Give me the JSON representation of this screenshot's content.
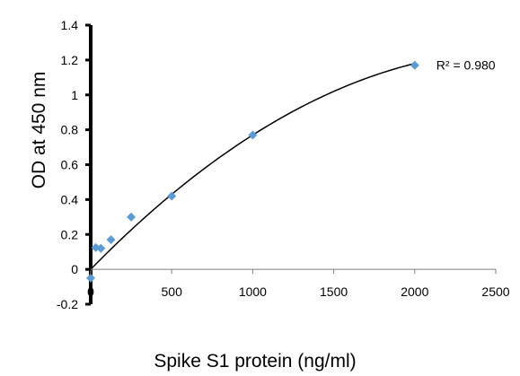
{
  "chart_data": {
    "type": "scatter",
    "xlabel": "Spike S1 protein (ng/ml)",
    "ylabel": "OD at 450 nm",
    "xlim": [
      0,
      2500
    ],
    "ylim": [
      -0.2,
      1.4
    ],
    "xticks": [
      0,
      500,
      1000,
      1500,
      2000,
      2500
    ],
    "yticks": [
      -0.2,
      0,
      0.2,
      0.4,
      0.6,
      0.8,
      1,
      1.2,
      1.4
    ],
    "xtick_labels": [
      "0",
      "500",
      "1000",
      "1500",
      "2000",
      "2500"
    ],
    "ytick_labels": [
      "-0.2",
      "0",
      "0.2",
      "0.4",
      "0.6",
      "0.8",
      "1",
      "1.2",
      "1.4"
    ],
    "grid": false,
    "series": [
      {
        "marker": "diamond",
        "color": "#5b9bd5",
        "x": [
          0,
          31.25,
          62.5,
          125,
          250,
          500,
          1000,
          2000
        ],
        "y": [
          -0.05,
          0.125,
          0.12,
          0.17,
          0.3,
          0.42,
          0.77,
          1.17
        ]
      }
    ],
    "trendline": {
      "type": "polynomial",
      "order": 2,
      "coefficients": [
        -1.8e-07,
        0.00095,
        0.0
      ],
      "color": "#000000"
    },
    "annotation": {
      "text": "R² = 0.980",
      "x": 2000,
      "y": 1.17
    }
  }
}
